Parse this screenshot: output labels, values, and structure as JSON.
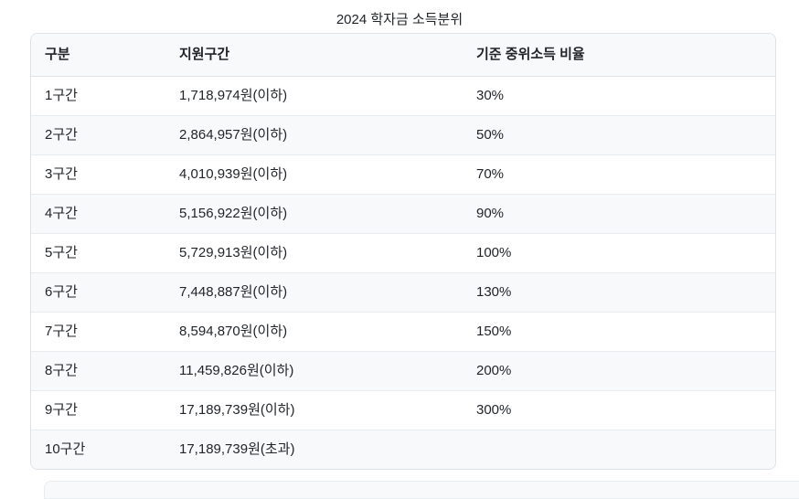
{
  "page": {
    "title": "2024 학자금 소득분위"
  },
  "table": {
    "columns": [
      "구분",
      "지원구간",
      "기준 중위소득 비율"
    ],
    "rows": [
      {
        "bracket": "1구간",
        "range": "1,718,974원(이하)",
        "ratio": "30%"
      },
      {
        "bracket": "2구간",
        "range": "2,864,957원(이하)",
        "ratio": "50%"
      },
      {
        "bracket": "3구간",
        "range": "4,010,939원(이하)",
        "ratio": "70%"
      },
      {
        "bracket": "4구간",
        "range": "5,156,922원(이하)",
        "ratio": "90%"
      },
      {
        "bracket": "5구간",
        "range": "5,729,913원(이하)",
        "ratio": "100%"
      },
      {
        "bracket": "6구간",
        "range": "7,448,887원(이하)",
        "ratio": "130%"
      },
      {
        "bracket": "7구간",
        "range": "8,594,870원(이하)",
        "ratio": "150%"
      },
      {
        "bracket": "8구간",
        "range": "11,459,826원(이하)",
        "ratio": "200%"
      },
      {
        "bracket": "9구간",
        "range": "17,189,739원(이하)",
        "ratio": "300%"
      },
      {
        "bracket": "10구간",
        "range": "17,189,739원(초과)",
        "ratio": ""
      }
    ]
  },
  "colors": {
    "text": "#212529",
    "stripe_background": "#f8f9fa",
    "card_border": "#dee2e6",
    "row_divider": "#e9ecef",
    "page_background": "#ffffff"
  }
}
